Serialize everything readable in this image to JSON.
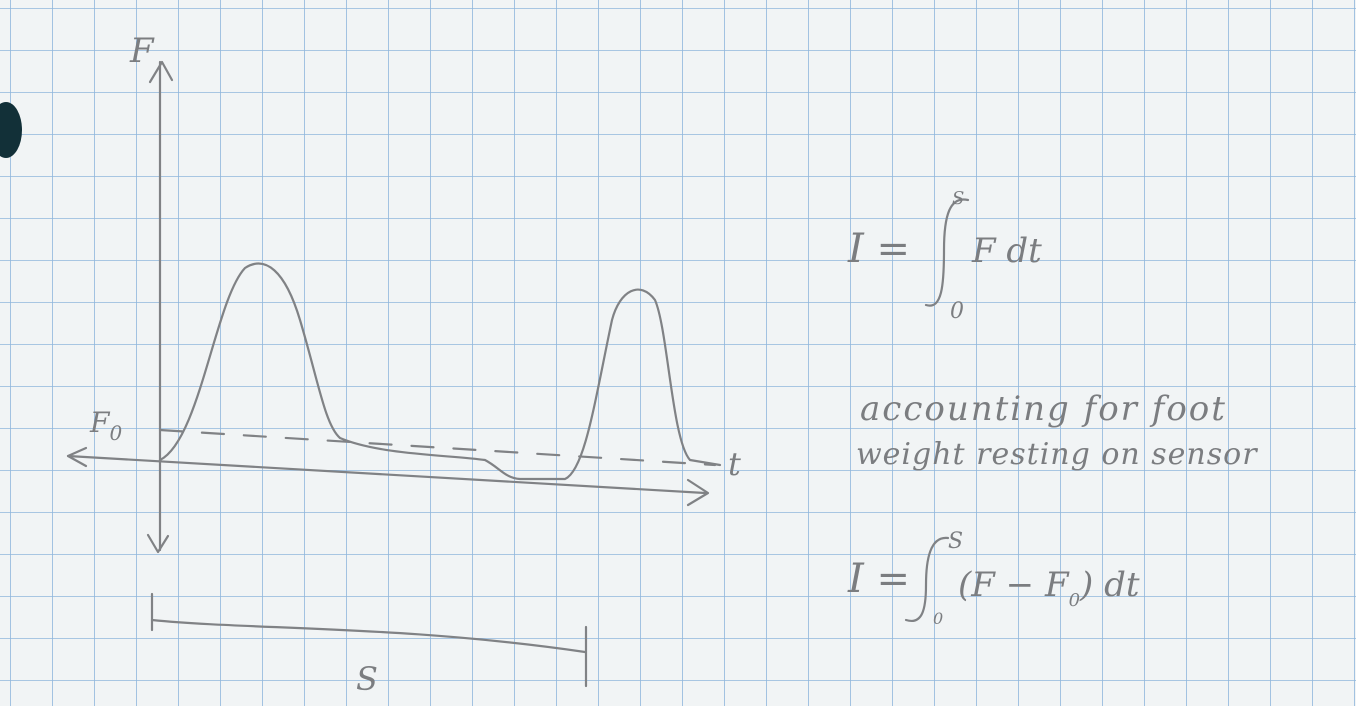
{
  "axes": {
    "y_label": "F",
    "x_label": "t",
    "baseline_label": {
      "text": "F",
      "subscript": "0"
    },
    "span_label": "S"
  },
  "equation_1": {
    "lhs": "I =",
    "lower_limit": "0",
    "upper_limit": "S",
    "integrand": "F dt"
  },
  "note": [
    "accounting for foot",
    "weight resting on sensor"
  ],
  "equation_2": {
    "lhs": "I =",
    "lower_limit": "0",
    "upper_limit": "S",
    "integrand_open": "(F − F",
    "integrand_subscript": "0",
    "integrand_close": ") dt"
  }
}
